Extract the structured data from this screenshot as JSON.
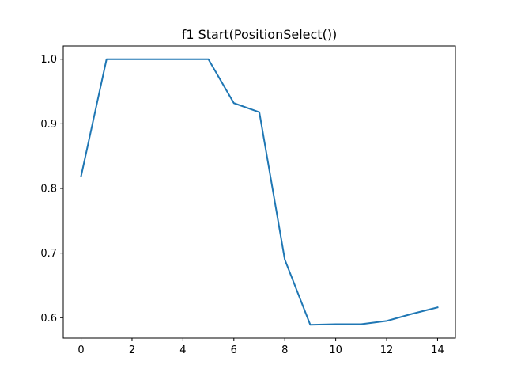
{
  "chart_data": {
    "type": "line",
    "title": "f1 Start(PositionSelect())",
    "xlabel": "",
    "ylabel": "",
    "xlim": [
      -0.7,
      14.7
    ],
    "ylim": [
      0.5685,
      1.0205
    ],
    "grid": false,
    "x_ticks": [
      0,
      2,
      4,
      6,
      8,
      10,
      12,
      14
    ],
    "y_ticks": [
      0.6,
      0.7,
      0.8,
      0.9,
      1.0
    ],
    "x_tick_labels": [
      "0",
      "2",
      "4",
      "6",
      "8",
      "10",
      "12",
      "14"
    ],
    "y_tick_labels": [
      "0.6",
      "0.7",
      "0.8",
      "0.9",
      "1.0"
    ],
    "series": [
      {
        "color": "#1f77b4",
        "x": [
          0,
          1,
          2,
          3,
          4,
          5,
          6,
          7,
          8,
          9,
          10,
          11,
          12,
          13,
          14
        ],
        "y": [
          0.819,
          1.0,
          1.0,
          1.0,
          1.0,
          1.0,
          0.932,
          0.918,
          0.69,
          0.589,
          0.59,
          0.59,
          0.595,
          0.606,
          0.616
        ]
      }
    ]
  }
}
